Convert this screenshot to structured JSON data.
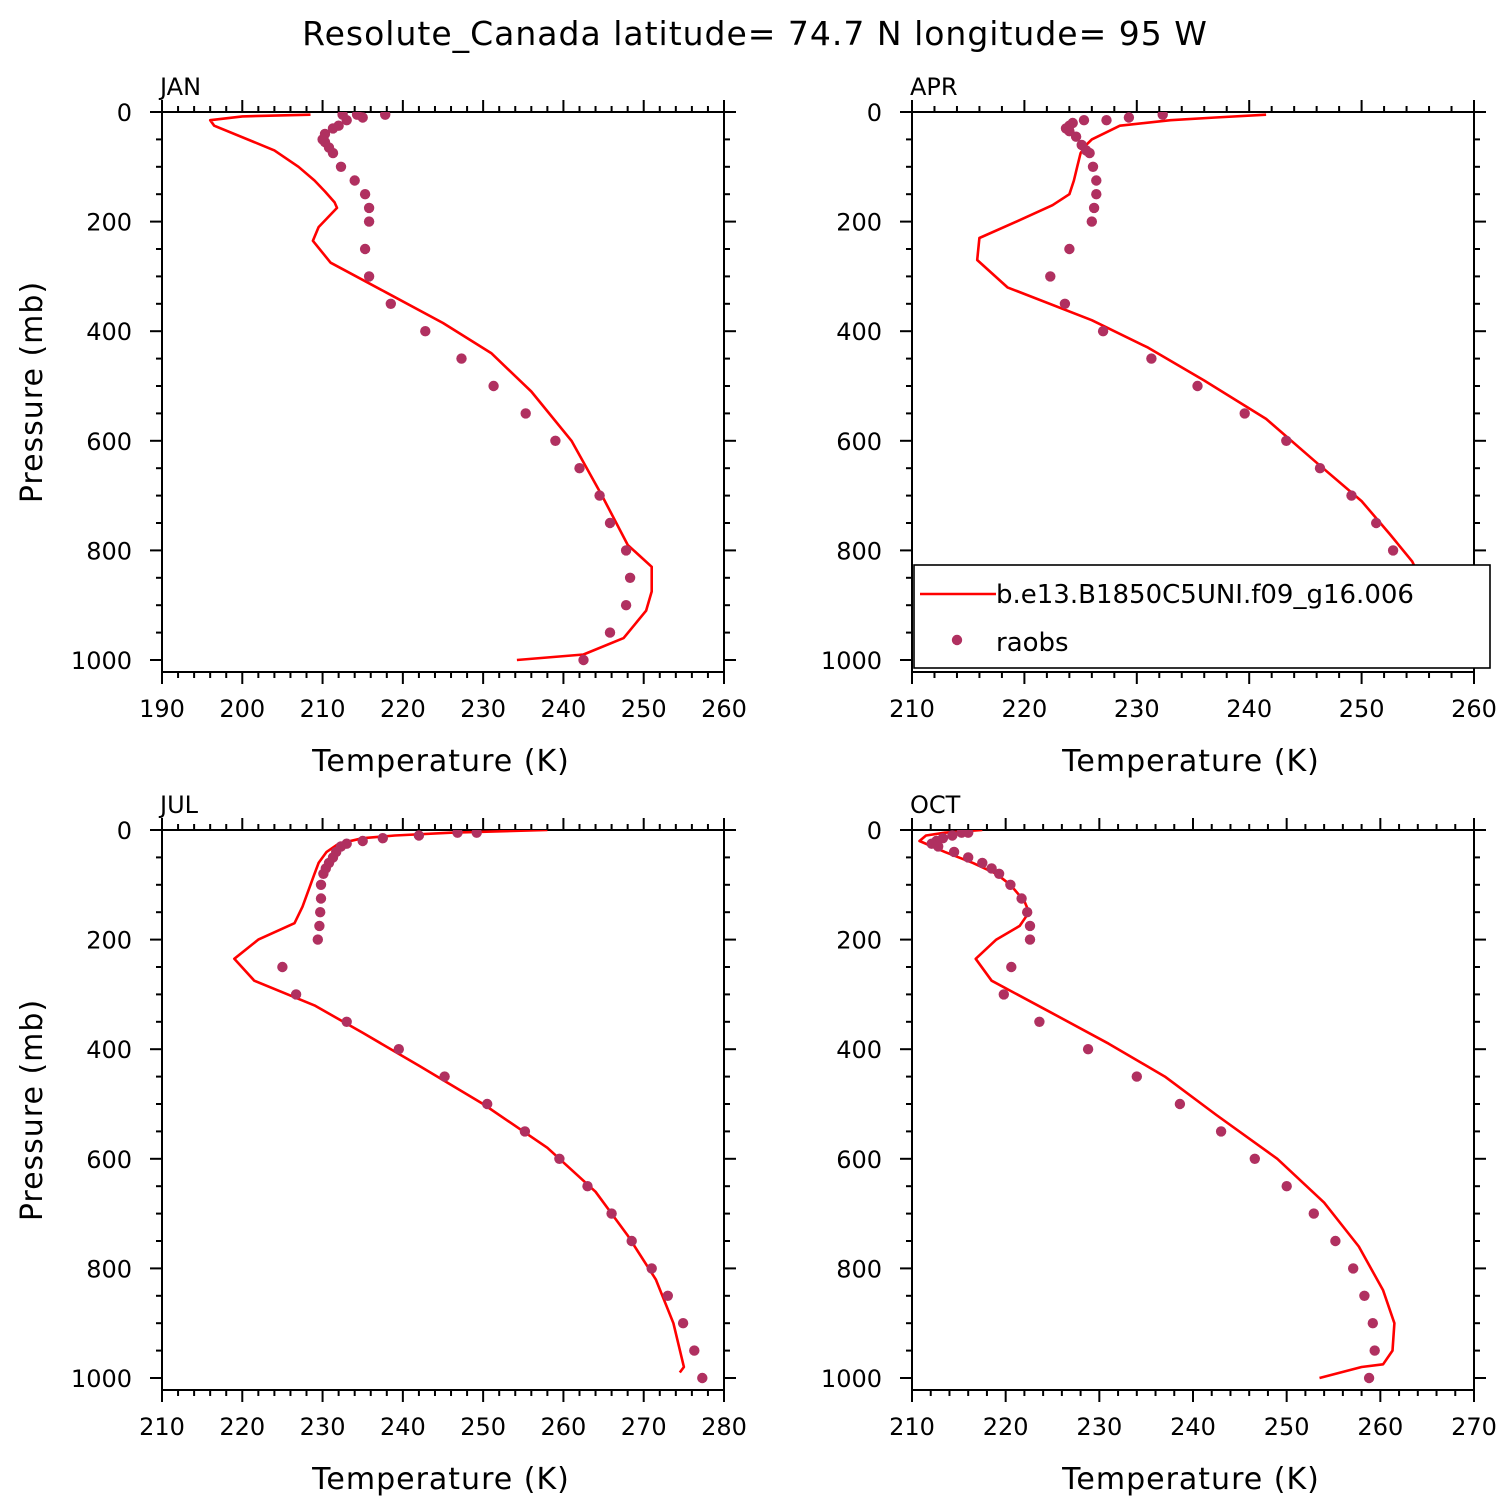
{
  "title": "Resolute_Canada  latitude= 74.7 N longitude= 95 W",
  "colors": {
    "model": "#ff0000",
    "obs": "#b03060",
    "axis": "#000000"
  },
  "legend": {
    "panel": 1,
    "placement": "lower-right",
    "items": [
      {
        "label": "b.e13.B1850C5UNI.f09_g16.006",
        "kind": "line"
      },
      {
        "label": "raobs",
        "kind": "marker"
      }
    ]
  },
  "chart_data": [
    {
      "type": "line",
      "label": "JAN",
      "xlabel": "Temperature (K)",
      "ylabel": "Pressure (mb)",
      "xlim": [
        190,
        260
      ],
      "xticks": [
        190,
        200,
        210,
        220,
        230,
        240,
        250,
        260
      ],
      "ylim": [
        1000,
        0
      ],
      "yticks": [
        0,
        200,
        400,
        600,
        800,
        1000
      ],
      "series": [
        {
          "name": "b.e13.B1850C5UNI.f09_g16.006",
          "style": "line",
          "points": [
            [
              208.5,
              5
            ],
            [
              200,
              8
            ],
            [
              196,
              15
            ],
            [
              196.5,
              25
            ],
            [
              204,
              70
            ],
            [
              207,
              100
            ],
            [
              209,
              125
            ],
            [
              210.3,
              145
            ],
            [
              211.5,
              165
            ],
            [
              211.8,
              175
            ],
            [
              209.5,
              210
            ],
            [
              208.8,
              235
            ],
            [
              211,
              275
            ],
            [
              218,
              330
            ],
            [
              225,
              385
            ],
            [
              231,
              440
            ],
            [
              236,
              510
            ],
            [
              241,
              600
            ],
            [
              244.8,
              700
            ],
            [
              248,
              790
            ],
            [
              251,
              830
            ],
            [
              251,
              875
            ],
            [
              250.3,
              910
            ],
            [
              247.5,
              960
            ],
            [
              242.5,
              990
            ],
            [
              234.2,
              1000
            ]
          ]
        },
        {
          "name": "raobs",
          "style": "marker",
          "points": [
            [
              217.8,
              5
            ],
            [
              214.3,
              5
            ],
            [
              212.5,
              5
            ],
            [
              215,
              10
            ],
            [
              213,
              15
            ],
            [
              212,
              25
            ],
            [
              211.3,
              30
            ],
            [
              210.3,
              40
            ],
            [
              210,
              50
            ],
            [
              210.3,
              55
            ],
            [
              210.8,
              65
            ],
            [
              211.3,
              75
            ],
            [
              212.3,
              100
            ],
            [
              214,
              125
            ],
            [
              215.3,
              150
            ],
            [
              215.8,
              175
            ],
            [
              215.8,
              200
            ],
            [
              215.3,
              250
            ],
            [
              215.8,
              300
            ],
            [
              218.5,
              350
            ],
            [
              222.8,
              400
            ],
            [
              227.3,
              450
            ],
            [
              231.3,
              500
            ],
            [
              235.3,
              550
            ],
            [
              239,
              600
            ],
            [
              242,
              650
            ],
            [
              244.5,
              700
            ],
            [
              245.8,
              750
            ],
            [
              247.8,
              800
            ],
            [
              248.3,
              850
            ],
            [
              247.8,
              900
            ],
            [
              245.8,
              950
            ],
            [
              242.5,
              1000
            ]
          ]
        }
      ]
    },
    {
      "type": "line",
      "label": "APR",
      "xlabel": "Temperature (K)",
      "ylabel": "",
      "xlim": [
        210,
        260
      ],
      "xticks": [
        210,
        220,
        230,
        240,
        250,
        260
      ],
      "ylim": [
        1000,
        0
      ],
      "yticks": [
        0,
        200,
        400,
        600,
        800,
        1000
      ],
      "series": [
        {
          "name": "b.e13.B1850C5UNI.f09_g16.006",
          "style": "line",
          "points": [
            [
              241.5,
              5
            ],
            [
              237,
              10
            ],
            [
              233,
              15
            ],
            [
              228.5,
              25
            ],
            [
              226,
              50
            ],
            [
              225.5,
              60
            ],
            [
              225,
              75
            ],
            [
              224.7,
              100
            ],
            [
              224.4,
              125
            ],
            [
              224,
              150
            ],
            [
              222.5,
              170
            ],
            [
              219.3,
              200
            ],
            [
              216,
              230
            ],
            [
              215.8,
              270
            ],
            [
              218.5,
              320
            ],
            [
              226,
              380
            ],
            [
              231,
              430
            ],
            [
              236,
              490
            ],
            [
              241.5,
              560
            ],
            [
              246,
              640
            ],
            [
              250,
              710
            ],
            [
              252.5,
              770
            ],
            [
              254.5,
              820
            ],
            [
              255.2,
              850
            ],
            [
              254.8,
              900
            ],
            [
              253.5,
              950
            ],
            [
              251.5,
              975
            ],
            [
              246.5,
              1000
            ]
          ]
        },
        {
          "name": "raobs",
          "style": "marker",
          "points": [
            [
              232.3,
              5
            ],
            [
              229.3,
              10
            ],
            [
              227.3,
              15
            ],
            [
              225.3,
              15
            ],
            [
              224.3,
              20
            ],
            [
              224,
              25
            ],
            [
              223.7,
              30
            ],
            [
              224,
              35
            ],
            [
              224.6,
              45
            ],
            [
              225.1,
              60
            ],
            [
              225.5,
              70
            ],
            [
              225.8,
              75
            ],
            [
              226.1,
              100
            ],
            [
              226.4,
              125
            ],
            [
              226.4,
              150
            ],
            [
              226.2,
              175
            ],
            [
              226,
              200
            ],
            [
              224,
              250
            ],
            [
              222.3,
              300
            ],
            [
              223.6,
              350
            ],
            [
              227,
              400
            ],
            [
              231.3,
              450
            ],
            [
              235.4,
              500
            ],
            [
              239.6,
              550
            ],
            [
              243.3,
              600
            ],
            [
              246.3,
              650
            ],
            [
              249.1,
              700
            ],
            [
              251.3,
              750
            ],
            [
              252.8,
              800
            ],
            [
              253.8,
              850
            ],
            [
              254,
              900
            ],
            [
              253.5,
              950
            ],
            [
              251,
              1000
            ]
          ]
        }
      ]
    },
    {
      "type": "line",
      "label": "JUL",
      "xlabel": "Temperature (K)",
      "ylabel": "Pressure (mb)",
      "xlim": [
        210,
        280
      ],
      "xticks": [
        210,
        220,
        230,
        240,
        250,
        260,
        270,
        280
      ],
      "ylim": [
        1000,
        0
      ],
      "yticks": [
        0,
        200,
        400,
        600,
        800,
        1000
      ],
      "series": [
        {
          "name": "b.e13.B1850C5UNI.f09_g16.006",
          "style": "line",
          "points": [
            [
              258,
              0
            ],
            [
              246,
              5
            ],
            [
              239,
              10
            ],
            [
              235,
              15
            ],
            [
              232,
              25
            ],
            [
              230.5,
              40
            ],
            [
              229.5,
              60
            ],
            [
              229,
              80
            ],
            [
              228.5,
              100
            ],
            [
              227.5,
              140
            ],
            [
              226.5,
              170
            ],
            [
              222,
              200
            ],
            [
              219,
              235
            ],
            [
              221.5,
              275
            ],
            [
              229,
              320
            ],
            [
              235,
              370
            ],
            [
              242,
              430
            ],
            [
              250,
              500
            ],
            [
              258,
              580
            ],
            [
              264,
              660
            ],
            [
              268,
              740
            ],
            [
              271.5,
              820
            ],
            [
              273.7,
              900
            ],
            [
              275,
              980
            ],
            [
              274.5,
              990
            ]
          ]
        },
        {
          "name": "raobs",
          "style": "marker",
          "points": [
            [
              249.2,
              5
            ],
            [
              246.8,
              5
            ],
            [
              242,
              10
            ],
            [
              237.5,
              15
            ],
            [
              235,
              20
            ],
            [
              233,
              25
            ],
            [
              232.3,
              30
            ],
            [
              231.7,
              40
            ],
            [
              231.3,
              50
            ],
            [
              230.8,
              60
            ],
            [
              230.4,
              70
            ],
            [
              230.1,
              80
            ],
            [
              229.8,
              100
            ],
            [
              229.8,
              125
            ],
            [
              229.7,
              150
            ],
            [
              229.6,
              175
            ],
            [
              229.4,
              200
            ],
            [
              225,
              250
            ],
            [
              226.7,
              300
            ],
            [
              233,
              350
            ],
            [
              239.5,
              400
            ],
            [
              245.2,
              450
            ],
            [
              250.5,
              500
            ],
            [
              255.2,
              550
            ],
            [
              259.5,
              600
            ],
            [
              263,
              650
            ],
            [
              266,
              700
            ],
            [
              268.5,
              750
            ],
            [
              271,
              800
            ],
            [
              273,
              850
            ],
            [
              274.9,
              900
            ],
            [
              276.3,
              950
            ],
            [
              277.3,
              1000
            ]
          ]
        }
      ]
    },
    {
      "type": "line",
      "label": "OCT",
      "xlabel": "Temperature (K)",
      "ylabel": "",
      "xlim": [
        210,
        270
      ],
      "xticks": [
        210,
        220,
        230,
        240,
        250,
        260,
        270
      ],
      "ylim": [
        1000,
        0
      ],
      "yticks": [
        0,
        200,
        400,
        600,
        800,
        1000
      ],
      "series": [
        {
          "name": "b.e13.B1850C5UNI.f09_g16.006",
          "style": "line",
          "points": [
            [
              217.5,
              0
            ],
            [
              213.5,
              5
            ],
            [
              211.5,
              10
            ],
            [
              210.8,
              20
            ],
            [
              213.5,
              40
            ],
            [
              216.5,
              60
            ],
            [
              219,
              80
            ],
            [
              220.5,
              100
            ],
            [
              222,
              130
            ],
            [
              222.5,
              150
            ],
            [
              221.5,
              175
            ],
            [
              219,
              200
            ],
            [
              216.8,
              235
            ],
            [
              218.5,
              275
            ],
            [
              224.5,
              330
            ],
            [
              231,
              390
            ],
            [
              237,
              450
            ],
            [
              242.5,
              520
            ],
            [
              249,
              600
            ],
            [
              254,
              680
            ],
            [
              257.7,
              760
            ],
            [
              260.3,
              840
            ],
            [
              261.5,
              900
            ],
            [
              261.3,
              950
            ],
            [
              260.3,
              975
            ],
            [
              258,
              980
            ],
            [
              253.5,
              1000
            ]
          ]
        },
        {
          "name": "raobs",
          "style": "marker",
          "points": [
            [
              216,
              5
            ],
            [
              215.3,
              5
            ],
            [
              214.3,
              10
            ],
            [
              213.3,
              15
            ],
            [
              212.6,
              20
            ],
            [
              212.1,
              25
            ],
            [
              212.8,
              30
            ],
            [
              214.5,
              40
            ],
            [
              216,
              50
            ],
            [
              217.5,
              60
            ],
            [
              218.5,
              70
            ],
            [
              219.3,
              80
            ],
            [
              220.5,
              100
            ],
            [
              221.7,
              125
            ],
            [
              222.3,
              150
            ],
            [
              222.6,
              175
            ],
            [
              222.6,
              200
            ],
            [
              220.6,
              250
            ],
            [
              219.8,
              300
            ],
            [
              223.6,
              350
            ],
            [
              228.8,
              400
            ],
            [
              234,
              450
            ],
            [
              238.6,
              500
            ],
            [
              243,
              550
            ],
            [
              246.6,
              600
            ],
            [
              250,
              650
            ],
            [
              252.9,
              700
            ],
            [
              255.2,
              750
            ],
            [
              257.1,
              800
            ],
            [
              258.3,
              850
            ],
            [
              259.2,
              900
            ],
            [
              259.4,
              950
            ],
            [
              258.8,
              1000
            ]
          ]
        }
      ]
    }
  ]
}
